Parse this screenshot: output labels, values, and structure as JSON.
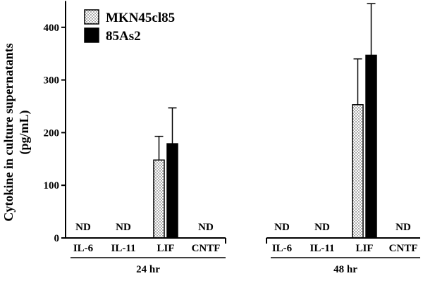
{
  "chart_data": {
    "type": "bar",
    "ylabel_line1": "Cytokine in culture supernatants",
    "ylabel_line2": "(pg/mL)",
    "ylim": [
      0,
      450
    ],
    "yticks": [
      0,
      100,
      200,
      300,
      400
    ],
    "legend_position": "top-left",
    "groups": [
      {
        "label": "24 hr",
        "categories": [
          "IL-6",
          "IL-11",
          "LIF",
          "CNTF"
        ],
        "nd_labels": [
          "ND",
          "ND",
          null,
          "ND"
        ]
      },
      {
        "label": "48 hr",
        "categories": [
          "IL-6",
          "IL-11",
          "LIF",
          "CNTF"
        ],
        "nd_labels": [
          "ND",
          "ND",
          null,
          "ND"
        ]
      }
    ],
    "series": [
      {
        "name": "MKN45cl85",
        "pattern": "dotted",
        "color": "#ffffff",
        "values": [
          [
            null,
            null,
            148,
            null
          ],
          [
            null,
            null,
            253,
            null
          ]
        ],
        "errors": [
          [
            null,
            null,
            45,
            null
          ],
          [
            null,
            null,
            87,
            null
          ]
        ]
      },
      {
        "name": "85As2",
        "pattern": "solid",
        "color": "#000000",
        "values": [
          [
            null,
            null,
            179,
            null
          ],
          [
            null,
            null,
            347,
            null
          ]
        ],
        "errors": [
          [
            null,
            null,
            68,
            null
          ],
          [
            null,
            null,
            98,
            null
          ]
        ]
      }
    ]
  }
}
